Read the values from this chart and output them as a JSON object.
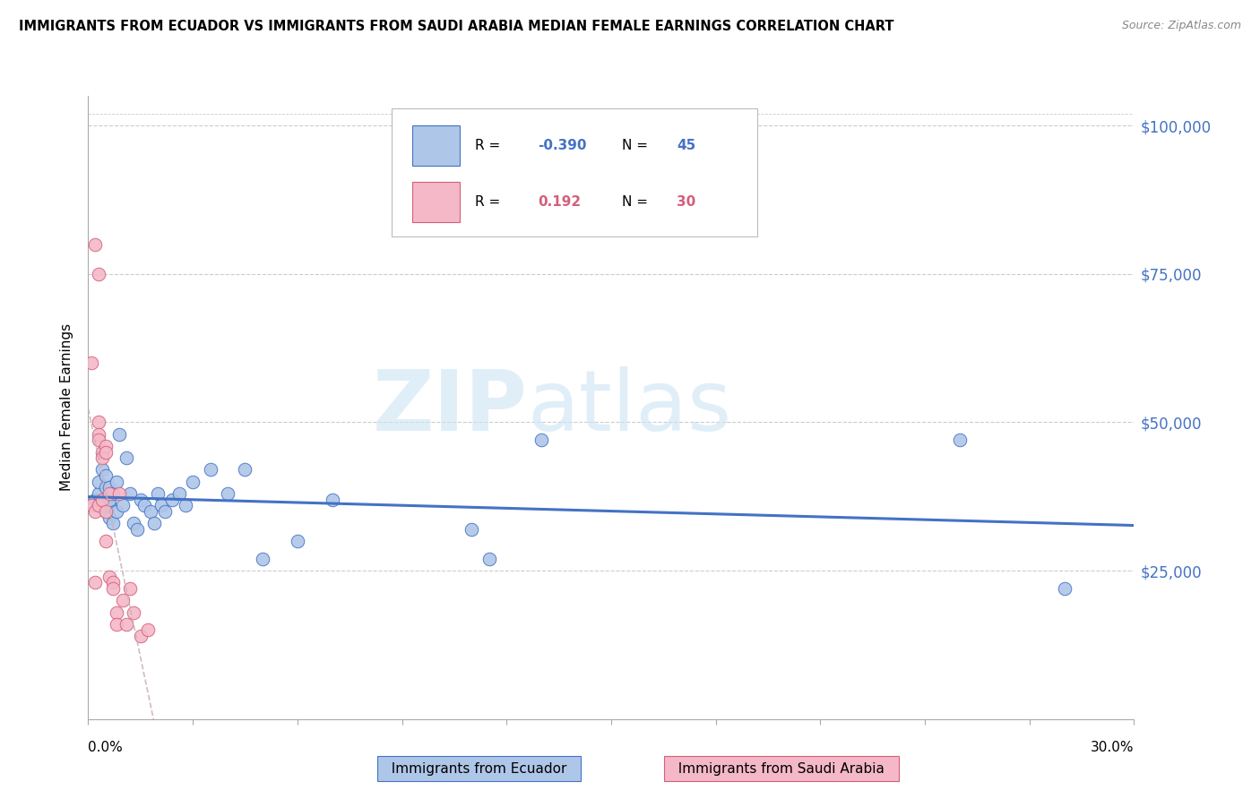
{
  "title": "IMMIGRANTS FROM ECUADOR VS IMMIGRANTS FROM SAUDI ARABIA MEDIAN FEMALE EARNINGS CORRELATION CHART",
  "source": "Source: ZipAtlas.com",
  "ylabel": "Median Female Earnings",
  "r_ecuador": -0.39,
  "n_ecuador": 45,
  "r_saudi": 0.192,
  "n_saudi": 30,
  "ecuador_color": "#aec6e8",
  "ecuador_line_color": "#4472c4",
  "saudi_color": "#f4b8c8",
  "saudi_line_color": "#d45f7a",
  "saudi_trend_color": "#c8a0b0",
  "watermark_zip_color": "#c8dff0",
  "watermark_atlas_color": "#b8d4ec",
  "ytick_color": "#4472c4",
  "ecuador_points_x": [
    0.002,
    0.003,
    0.003,
    0.004,
    0.004,
    0.005,
    0.005,
    0.005,
    0.005,
    0.006,
    0.006,
    0.006,
    0.006,
    0.007,
    0.007,
    0.008,
    0.008,
    0.009,
    0.01,
    0.011,
    0.012,
    0.013,
    0.014,
    0.015,
    0.016,
    0.018,
    0.019,
    0.02,
    0.021,
    0.022,
    0.024,
    0.026,
    0.028,
    0.03,
    0.035,
    0.04,
    0.045,
    0.05,
    0.06,
    0.07,
    0.11,
    0.115,
    0.13,
    0.25,
    0.28
  ],
  "ecuador_points_y": [
    37000,
    38000,
    40000,
    42000,
    36000,
    35000,
    37000,
    39000,
    41000,
    34000,
    36000,
    37000,
    39000,
    33000,
    38000,
    35000,
    40000,
    48000,
    36000,
    44000,
    38000,
    33000,
    32000,
    37000,
    36000,
    35000,
    33000,
    38000,
    36000,
    35000,
    37000,
    38000,
    36000,
    40000,
    42000,
    38000,
    42000,
    27000,
    30000,
    37000,
    32000,
    27000,
    47000,
    47000,
    22000
  ],
  "saudi_points_x": [
    0.001,
    0.001,
    0.002,
    0.002,
    0.002,
    0.003,
    0.003,
    0.003,
    0.003,
    0.003,
    0.004,
    0.004,
    0.004,
    0.005,
    0.005,
    0.005,
    0.005,
    0.006,
    0.006,
    0.007,
    0.007,
    0.008,
    0.008,
    0.009,
    0.01,
    0.011,
    0.012,
    0.013,
    0.015,
    0.017
  ],
  "saudi_points_y": [
    60000,
    36000,
    80000,
    35000,
    23000,
    75000,
    50000,
    48000,
    47000,
    36000,
    45000,
    44000,
    37000,
    46000,
    45000,
    35000,
    30000,
    38000,
    24000,
    23000,
    22000,
    18000,
    16000,
    38000,
    20000,
    16000,
    22000,
    18000,
    14000,
    15000
  ]
}
